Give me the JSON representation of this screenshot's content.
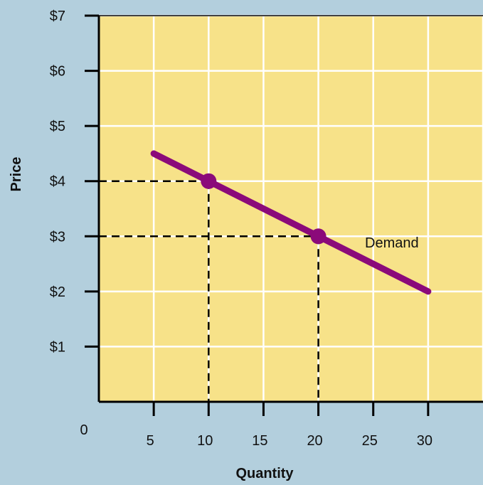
{
  "chart_data": {
    "type": "line",
    "title": "",
    "xlabel": "Quantity",
    "ylabel": "Price",
    "origin_label": "0",
    "xlim": [
      0,
      35
    ],
    "ylim": [
      0,
      7
    ],
    "x_ticks": [
      5,
      10,
      15,
      20,
      25,
      30
    ],
    "x_tick_labels": [
      "5",
      "10",
      "15",
      "20",
      "25",
      "30"
    ],
    "y_ticks": [
      1,
      2,
      3,
      4,
      5,
      6,
      7
    ],
    "y_tick_labels": [
      "$1",
      "$2",
      "$3",
      "$4",
      "$5",
      "$6",
      "$7"
    ],
    "grid": true,
    "series": [
      {
        "name": "Demand",
        "x": [
          5,
          30
        ],
        "y": [
          4.5,
          2
        ],
        "color": "#8b0a7a"
      }
    ],
    "highlighted_points": [
      {
        "x": 10,
        "y": 4
      },
      {
        "x": 20,
        "y": 3
      }
    ],
    "colors": {
      "background": "#b3cfdd",
      "plot_area": "#f7e289",
      "grid": "#ffffff",
      "guide_lines": "#000000"
    }
  }
}
